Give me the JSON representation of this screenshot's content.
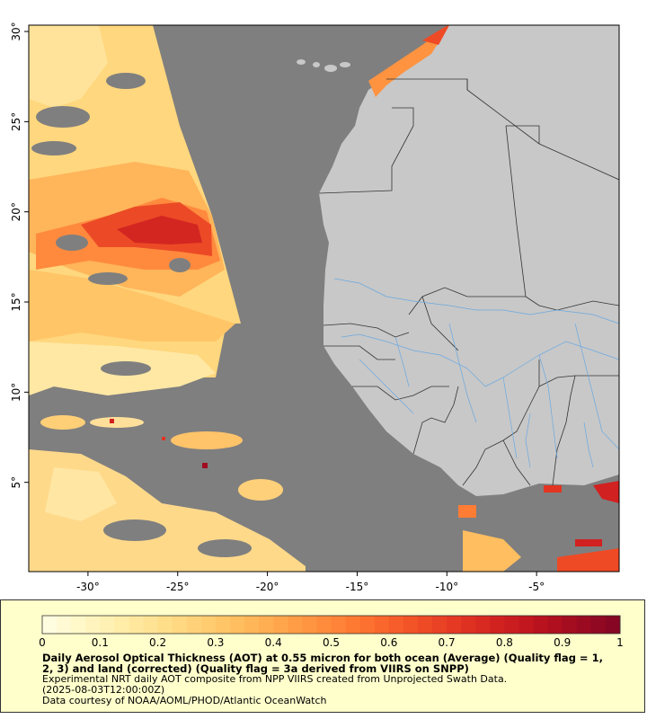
{
  "map": {
    "lat_labels": [
      {
        "value": 30,
        "text": "30°"
      },
      {
        "value": 25,
        "text": "25°"
      },
      {
        "value": 20,
        "text": "20°"
      },
      {
        "value": 15,
        "text": "15°"
      },
      {
        "value": 10,
        "text": "10°"
      },
      {
        "value": 5,
        "text": "5°"
      }
    ],
    "lon_labels": [
      {
        "value": -30,
        "text": "-30°"
      },
      {
        "value": -25,
        "text": "-25°"
      },
      {
        "value": -20,
        "text": "-20°"
      },
      {
        "value": -15,
        "text": "-15°"
      },
      {
        "value": -10,
        "text": "-10°"
      },
      {
        "value": -5,
        "text": "-5°"
      }
    ],
    "colors": {
      "ocean_nodata": "#7f7f7f",
      "land": "#c8c8c8",
      "rivers": "#6aa8e0",
      "borders": "#333333"
    }
  },
  "legend": {
    "colorbar_ticks": [
      "0",
      "0.1",
      "0.2",
      "0.3",
      "0.4",
      "0.5",
      "0.6",
      "0.7",
      "0.8",
      "0.9",
      "1"
    ],
    "title": "Daily Aerosol Optical Thickness (AOT) at 0.55 micron for both ocean (Average) (Quality flag = 1, 2, 3) and land (corrected) (Quality flag = 3a derived from VIIRS on SNPP)",
    "line1": "Experimental NRT daily AOT composite from NPP VIIRS created from Unprojected Swath Data.",
    "line2": "(2025-08-03T12:00:00Z)",
    "line3": "Data courtesy of NOAA/AOML/PHOD/Atlantic OceanWatch",
    "palette": [
      "#fffde0",
      "#fff6c2",
      "#ffeca6",
      "#ffdf8c",
      "#ffd075",
      "#ffbe5f",
      "#ffa94e",
      "#ff9340",
      "#ff7c34",
      "#f8632b",
      "#ee4a25",
      "#e23422",
      "#d12120",
      "#bb131f",
      "#a00b20",
      "#860623"
    ]
  }
}
